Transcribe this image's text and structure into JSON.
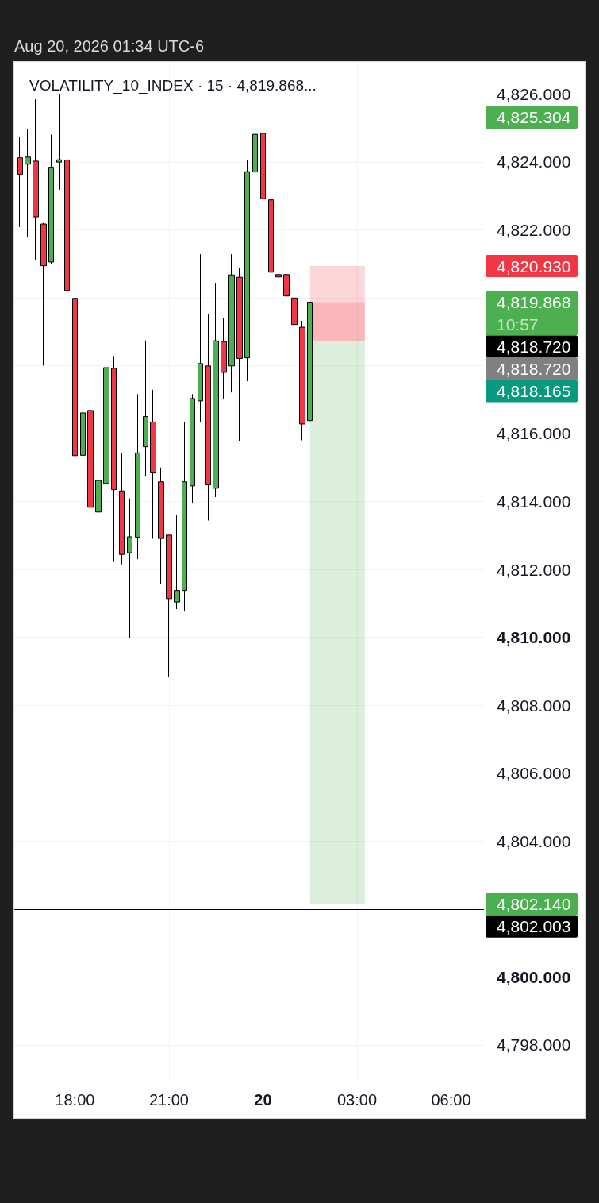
{
  "chart_data": {
    "type": "candlestick",
    "title": "VOLATILITY_10_INDEX · 15 · 4,819.868...",
    "subtitle": "Aug 20, 2026 01:34 UTC-6",
    "x": [
      "2026-08-19T16:15",
      "2026-08-19T16:30",
      "2026-08-19T16:45",
      "2026-08-19T17:00",
      "2026-08-19T17:15",
      "2026-08-19T17:30",
      "2026-08-19T17:45",
      "2026-08-19T18:00",
      "2026-08-19T18:15",
      "2026-08-19T18:30",
      "2026-08-19T18:45",
      "2026-08-19T19:00",
      "2026-08-19T19:15",
      "2026-08-19T19:30",
      "2026-08-19T19:45",
      "2026-08-19T20:00",
      "2026-08-19T20:15",
      "2026-08-19T20:30",
      "2026-08-19T20:45",
      "2026-08-19T21:00",
      "2026-08-19T21:15",
      "2026-08-19T21:30",
      "2026-08-19T21:45",
      "2026-08-19T22:00",
      "2026-08-19T22:15",
      "2026-08-19T22:30",
      "2026-08-19T22:45",
      "2026-08-19T23:00",
      "2026-08-19T23:15",
      "2026-08-19T23:30",
      "2026-08-19T23:45",
      "2026-08-20T00:00",
      "2026-08-20T00:15",
      "2026-08-20T00:30",
      "2026-08-20T00:45",
      "2026-08-20T01:00",
      "2026-08-20T01:15",
      "2026-08-20T01:30"
    ],
    "ohlc": [
      [
        4824.12,
        4824.73,
        4822.08,
        4823.63
      ],
      [
        4823.93,
        4824.96,
        4821.77,
        4824.14
      ],
      [
        4824.02,
        4825.84,
        4821.12,
        4822.38
      ],
      [
        4822.17,
        4822.2,
        4818.0,
        4820.94
      ],
      [
        4821.05,
        4824.8,
        4821.0,
        4823.84
      ],
      [
        4823.99,
        4826.0,
        4823.18,
        4824.06
      ],
      [
        4824.05,
        4824.76,
        4820.21,
        4820.21
      ],
      [
        4819.98,
        4820.18,
        4814.88,
        4815.35
      ],
      [
        4815.36,
        4818.18,
        4815.08,
        4816.61
      ],
      [
        4816.68,
        4817.14,
        4812.94,
        4813.83
      ],
      [
        4813.69,
        4815.77,
        4811.97,
        4814.62
      ],
      [
        4814.53,
        4819.58,
        4813.61,
        4817.94
      ],
      [
        4817.92,
        4818.28,
        4812.22,
        4814.35
      ],
      [
        4814.31,
        4815.42,
        4812.15,
        4812.44
      ],
      [
        4812.49,
        4814.09,
        4809.97,
        4812.96
      ],
      [
        4812.95,
        4817.16,
        4812.3,
        4815.43
      ],
      [
        4815.61,
        4818.74,
        4814.74,
        4816.5
      ],
      [
        4816.34,
        4817.29,
        4812.9,
        4814.84
      ],
      [
        4814.58,
        4815.0,
        4811.57,
        4812.91
      ],
      [
        4813.01,
        4813.01,
        4808.83,
        4811.14
      ],
      [
        4811.04,
        4813.6,
        4810.83,
        4811.38
      ],
      [
        4811.38,
        4816.34,
        4810.76,
        4814.58
      ],
      [
        4814.46,
        4817.16,
        4813.94,
        4817.03
      ],
      [
        4816.96,
        4821.28,
        4816.35,
        4818.06
      ],
      [
        4817.99,
        4819.51,
        4813.44,
        4814.49
      ],
      [
        4814.39,
        4820.43,
        4814.13,
        4818.73
      ],
      [
        4818.71,
        4819.41,
        4817.03,
        4817.8
      ],
      [
        4817.99,
        4821.28,
        4817.21,
        4820.67
      ],
      [
        4820.6,
        4820.87,
        4815.77,
        4818.21
      ],
      [
        4818.23,
        4824.05,
        4817.54,
        4823.71
      ],
      [
        4823.7,
        4825.05,
        4822.86,
        4824.81
      ],
      [
        4824.84,
        4826.94,
        4822.27,
        4822.91
      ],
      [
        4822.88,
        4824.08,
        4820.26,
        4820.75
      ],
      [
        4820.68,
        4823.04,
        4820.26,
        4820.61
      ],
      [
        4820.68,
        4821.39,
        4817.79,
        4820.05
      ],
      [
        4819.99,
        4820.02,
        4817.35,
        4819.21
      ],
      [
        4819.13,
        4819.32,
        4815.8,
        4816.28
      ],
      [
        4816.38,
        4819.868,
        4816.38,
        4819.868
      ]
    ],
    "colors": [
      "#f23645",
      "#4caf50",
      "#f23645",
      "#f23645",
      "#4caf50",
      "#4caf50",
      "#f23645",
      "#f23645",
      "#4caf50",
      "#f23645",
      "#4caf50",
      "#4caf50",
      "#f23645",
      "#f23645",
      "#4caf50",
      "#4caf50",
      "#4caf50",
      "#f23645",
      "#f23645",
      "#f23645",
      "#4caf50",
      "#4caf50",
      "#4caf50",
      "#4caf50",
      "#f23645",
      "#4caf50",
      "#f23645",
      "#4caf50",
      "#f23645",
      "#4caf50",
      "#4caf50",
      "#f23645",
      "#f23645",
      "#f23645",
      "#f23645",
      "#f23645",
      "#f23645",
      "#4caf50"
    ],
    "xlim": [
      "2026-08-19T16:04",
      "2026-08-20T07:03"
    ],
    "xticks": [
      {
        "value": "2026-08-19T18:00",
        "label": "18:00"
      },
      {
        "value": "2026-08-19T21:00",
        "label": "21:00"
      },
      {
        "value": "2026-08-20T00:00",
        "label": "20"
      },
      {
        "value": "2026-08-20T03:00",
        "label": "03:00"
      },
      {
        "value": "2026-08-20T06:00",
        "label": "06:00"
      }
    ],
    "ylim": [
      4796.97,
      4826.94
    ],
    "yticks": [
      {
        "value": 4798,
        "label": "4,798.000"
      },
      {
        "value": 4800,
        "label": "4,800.000"
      },
      {
        "value": 4802,
        "label": null
      },
      {
        "value": 4804,
        "label": "4,804.000"
      },
      {
        "value": 4806,
        "label": "4,806.000"
      },
      {
        "value": 4808,
        "label": "4,808.000"
      },
      {
        "value": 4810,
        "label": "4,810.000"
      },
      {
        "value": 4812,
        "label": "4,812.000"
      },
      {
        "value": 4814,
        "label": "4,814.000"
      },
      {
        "value": 4816,
        "label": "4,816.000"
      },
      {
        "value": 4818,
        "label": null
      },
      {
        "value": 4820,
        "label": null
      },
      {
        "value": 4822,
        "label": "4,822.000"
      },
      {
        "value": 4824,
        "label": "4,824.000"
      },
      {
        "value": 4826,
        "label": "4,826.000"
      }
    ],
    "grid": true,
    "ref_lines": [
      {
        "axis": "y",
        "value": 4818.72,
        "label": "4,818.720",
        "color": "#000000"
      },
      {
        "axis": "y",
        "value": 4802.003,
        "label": "4,802.003",
        "color": "#000000"
      }
    ],
    "bands": [
      {
        "axis": "y",
        "from": 4818.72,
        "to": 4820.93,
        "color": "#f23645"
      },
      {
        "axis": "y",
        "from": 4818.72,
        "to": 4819.868,
        "color": "#f23645"
      },
      {
        "axis": "y",
        "from": 4818.72,
        "to": 4802.14,
        "color": "#4caf50"
      }
    ],
    "annotations": [
      "4,825.304",
      "4,820.930",
      "4,819.868\n10:57",
      "4,818.720",
      "4,818.165",
      "4,802.140"
    ]
  }
}
